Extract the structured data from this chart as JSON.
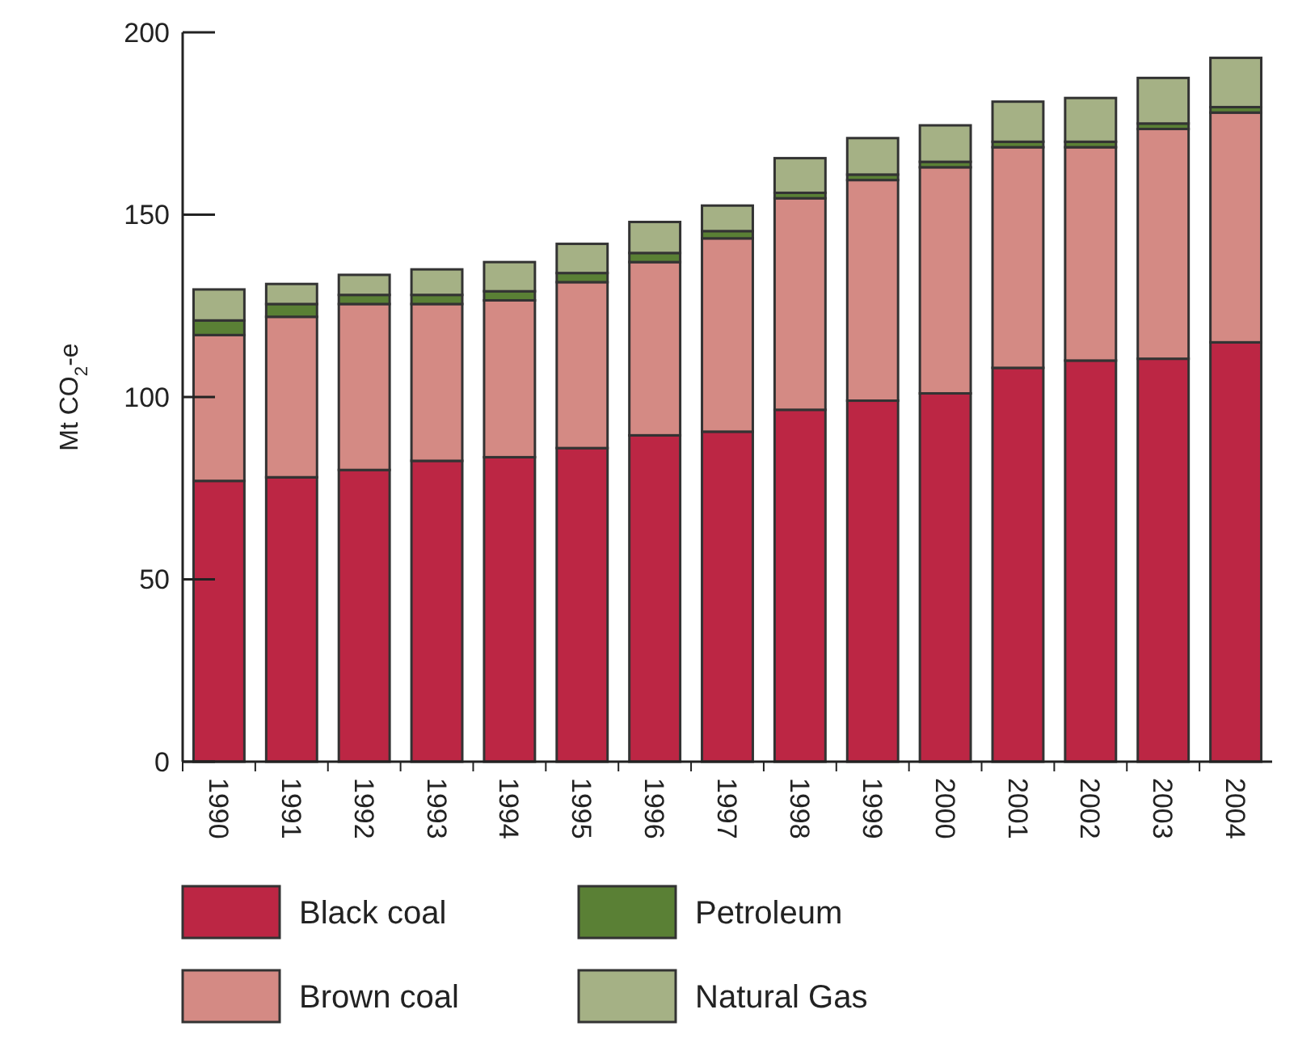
{
  "chart_data": {
    "type": "bar",
    "stacked": true,
    "ylabel": "Mt CO$_{2}$-e",
    "categories": [
      "1990",
      "1991",
      "1992",
      "1993",
      "1994",
      "1995",
      "1996",
      "1997",
      "1998",
      "1999",
      "2000",
      "2001",
      "2002",
      "2003",
      "2004"
    ],
    "ylim": [
      0,
      200
    ],
    "yticks": [
      0,
      50,
      100,
      150,
      200
    ],
    "legend": "bottom",
    "grid": false,
    "series": [
      {
        "name": "Black coal",
        "color": "#bc2644",
        "values": [
          77,
          78,
          80,
          82.5,
          83.5,
          86,
          89.5,
          90.5,
          96.5,
          99,
          101,
          108,
          110,
          110.5,
          115
        ]
      },
      {
        "name": "Brown coal",
        "color": "#d48a84",
        "values": [
          40,
          44,
          45.5,
          43,
          43,
          45.5,
          47.5,
          53,
          58,
          60.5,
          62,
          60.5,
          58.5,
          63,
          63
        ]
      },
      {
        "name": "Petroleum",
        "color": "#5a8035",
        "values": [
          4,
          3.5,
          2.5,
          2.5,
          2.5,
          2.5,
          2.5,
          2,
          1.5,
          1.5,
          1.5,
          1.5,
          1.5,
          1.5,
          1.5
        ]
      },
      {
        "name": "Natural Gas",
        "color": "#a5b185",
        "values": [
          8.5,
          5.5,
          5.5,
          7,
          8,
          8,
          8.5,
          7,
          9.5,
          10,
          10,
          11,
          12,
          12.5,
          13.5
        ]
      }
    ]
  }
}
